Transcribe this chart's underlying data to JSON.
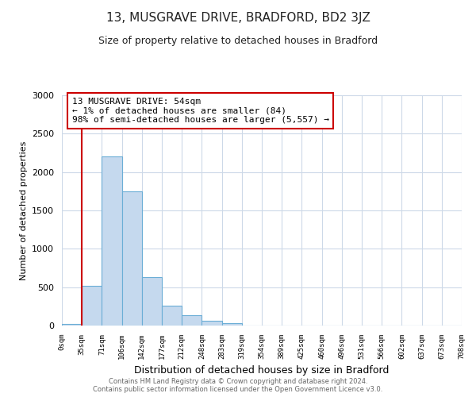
{
  "title": "13, MUSGRAVE DRIVE, BRADFORD, BD2 3JZ",
  "subtitle": "Size of property relative to detached houses in Bradford",
  "xlabel": "Distribution of detached houses by size in Bradford",
  "ylabel": "Number of detached properties",
  "bin_labels": [
    "0sqm",
    "35sqm",
    "71sqm",
    "106sqm",
    "142sqm",
    "177sqm",
    "212sqm",
    "248sqm",
    "283sqm",
    "319sqm",
    "354sqm",
    "389sqm",
    "425sqm",
    "460sqm",
    "496sqm",
    "531sqm",
    "566sqm",
    "602sqm",
    "637sqm",
    "673sqm",
    "708sqm"
  ],
  "bar_values": [
    20,
    520,
    2200,
    1750,
    635,
    260,
    130,
    60,
    30,
    5,
    0,
    0,
    0,
    0,
    0,
    0,
    0,
    0,
    0,
    0
  ],
  "bar_color": "#c5d9ee",
  "bar_edge_color": "#6baed6",
  "vline_x_index": 1,
  "vline_color": "#cc0000",
  "annotation_line1": "13 MUSGRAVE DRIVE: 54sqm",
  "annotation_line2": "← 1% of detached houses are smaller (84)",
  "annotation_line3": "98% of semi-detached houses are larger (5,557) →",
  "annotation_box_color": "#ffffff",
  "annotation_box_edge": "#cc0000",
  "ylim": [
    0,
    3000
  ],
  "yticks": [
    0,
    500,
    1000,
    1500,
    2000,
    2500,
    3000
  ],
  "footer_line1": "Contains HM Land Registry data © Crown copyright and database right 2024.",
  "footer_line2": "Contains public sector information licensed under the Open Government Licence v3.0.",
  "bg_color": "#ffffff",
  "grid_color": "#cdd9e8",
  "title_fontsize": 11,
  "subtitle_fontsize": 9
}
